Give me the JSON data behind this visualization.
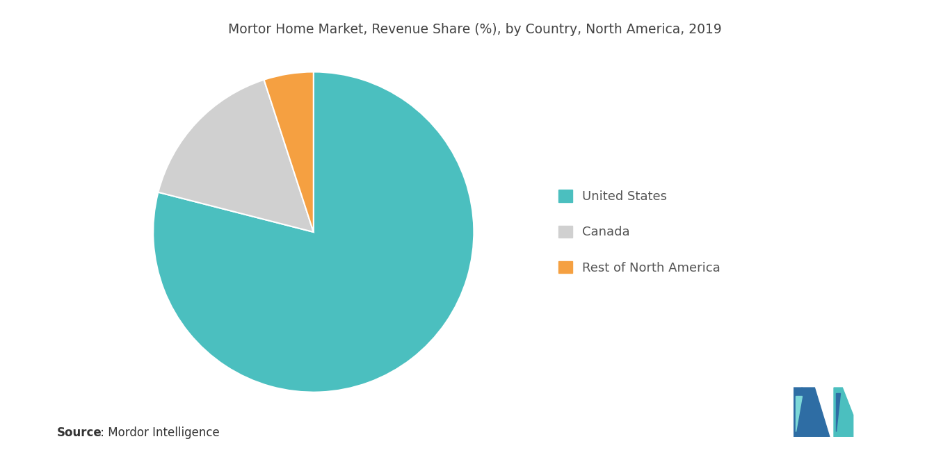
{
  "title": "Mortor Home Market, Revenue Share (%), by Country, North America, 2019",
  "slices": [
    {
      "label": "United States",
      "value": 79,
      "color": "#4bbfbf"
    },
    {
      "label": "Canada",
      "value": 16,
      "color": "#d0d0d0"
    },
    {
      "label": "Rest of North America",
      "value": 5,
      "color": "#f5a041"
    }
  ],
  "source_bold": "Source",
  "source_rest": " : Mordor Intelligence",
  "title_fontsize": 13.5,
  "legend_fontsize": 13,
  "source_fontsize": 12,
  "background_color": "#ffffff",
  "start_angle": 90,
  "text_color": "#555555",
  "logo_left_color": "#2e6da4",
  "logo_teal_color": "#4bbfbf"
}
